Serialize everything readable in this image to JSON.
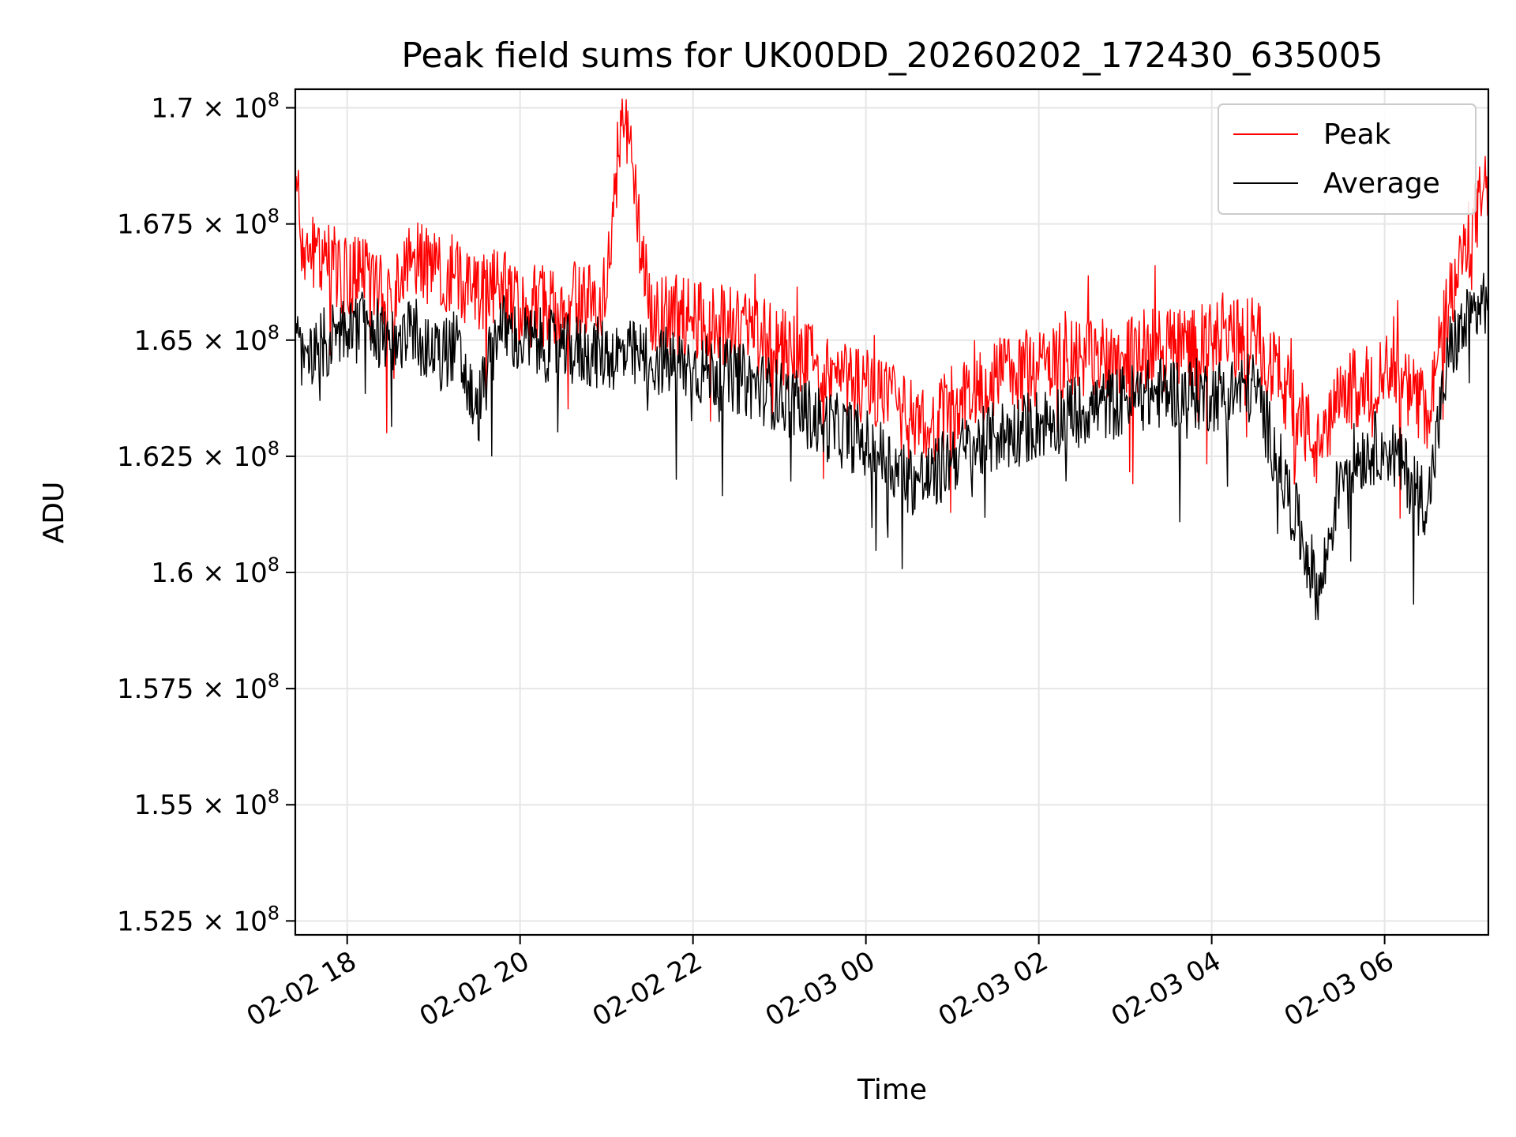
{
  "chart_data": {
    "type": "line",
    "title": "Peak field sums for UK00DD_20260202_172430_635005",
    "xlabel": "Time",
    "ylabel": "ADU",
    "x_range": [
      "2026-02-02 17:24",
      "2026-02-03 07:12"
    ],
    "ylim": [
      152200000,
      170400000
    ],
    "x_ticks": [
      {
        "label": "02-02 18",
        "time": "2026-02-02 18:00"
      },
      {
        "label": "02-02 20",
        "time": "2026-02-02 20:00"
      },
      {
        "label": "02-02 22",
        "time": "2026-02-02 22:00"
      },
      {
        "label": "02-03 00",
        "time": "2026-02-03 00:00"
      },
      {
        "label": "02-03 02",
        "time": "2026-02-03 02:00"
      },
      {
        "label": "02-03 04",
        "time": "2026-02-03 04:00"
      },
      {
        "label": "02-03 06",
        "time": "2026-02-03 06:00"
      }
    ],
    "y_ticks": [
      {
        "mantissa": "1.525",
        "value": 152500000
      },
      {
        "mantissa": "1.55",
        "value": 155000000
      },
      {
        "mantissa": "1.575",
        "value": 157500000
      },
      {
        "mantissa": "1.6",
        "value": 160000000
      },
      {
        "mantissa": "1.625",
        "value": 162500000
      },
      {
        "mantissa": "1.65",
        "value": 165000000
      },
      {
        "mantissa": "1.675",
        "value": 167500000
      },
      {
        "mantissa": "1.7",
        "value": 170000000
      }
    ],
    "y_tick_times": "×",
    "y_tick_base": "10",
    "y_tick_exp": "8",
    "grid": true,
    "legend": "top-right",
    "series": [
      {
        "name": "Peak",
        "color": "#ff0000",
        "points": [
          [
            "2026-02-02 17:24",
            168.3
          ],
          [
            "2026-02-02 17:30",
            167.0
          ],
          [
            "2026-02-02 17:45",
            166.8
          ],
          [
            "2026-02-02 18:00",
            166.3
          ],
          [
            "2026-02-02 18:15",
            166.5
          ],
          [
            "2026-02-02 18:30",
            166.1
          ],
          [
            "2026-02-02 18:45",
            166.7
          ],
          [
            "2026-02-02 19:00",
            166.6
          ],
          [
            "2026-02-02 19:15",
            166.4
          ],
          [
            "2026-02-02 19:30",
            165.9
          ],
          [
            "2026-02-02 19:45",
            166.2
          ],
          [
            "2026-02-02 20:00",
            165.7
          ],
          [
            "2026-02-02 20:30",
            165.8
          ],
          [
            "2026-02-02 21:00",
            165.9
          ],
          [
            "2026-02-02 21:11",
            170.2
          ],
          [
            "2026-02-02 21:30",
            165.6
          ],
          [
            "2026-02-02 22:00",
            165.5
          ],
          [
            "2026-02-02 22:30",
            165.3
          ],
          [
            "2026-02-02 23:00",
            164.9
          ],
          [
            "2026-02-02 23:30",
            164.3
          ],
          [
            "2026-02-03 00:00",
            164.0
          ],
          [
            "2026-02-03 00:30",
            163.3
          ],
          [
            "2026-02-03 00:45",
            163.0
          ],
          [
            "2026-02-03 01:00",
            163.6
          ],
          [
            "2026-02-03 01:30",
            164.2
          ],
          [
            "2026-02-03 02:00",
            164.4
          ],
          [
            "2026-02-03 02:30",
            164.6
          ],
          [
            "2026-02-03 03:00",
            164.7
          ],
          [
            "2026-02-03 03:30",
            164.9
          ],
          [
            "2026-02-03 04:00",
            164.9
          ],
          [
            "2026-02-03 04:30",
            165.1
          ],
          [
            "2026-02-03 05:00",
            163.5
          ],
          [
            "2026-02-03 05:15",
            162.5
          ],
          [
            "2026-02-03 05:30",
            163.8
          ],
          [
            "2026-02-03 06:00",
            164.3
          ],
          [
            "2026-02-03 06:30",
            163.5
          ],
          [
            "2026-02-03 06:45",
            165.8
          ],
          [
            "2026-02-03 07:12",
            168.5
          ]
        ]
      },
      {
        "name": "Average",
        "color": "#000000",
        "points": [
          [
            "2026-02-02 17:24",
            165.0
          ],
          [
            "2026-02-02 17:30",
            164.4
          ],
          [
            "2026-02-02 17:45",
            165.0
          ],
          [
            "2026-02-02 18:00",
            165.2
          ],
          [
            "2026-02-02 18:15",
            165.4
          ],
          [
            "2026-02-02 18:30",
            164.8
          ],
          [
            "2026-02-02 18:45",
            165.3
          ],
          [
            "2026-02-02 19:00",
            164.6
          ],
          [
            "2026-02-02 19:15",
            164.9
          ],
          [
            "2026-02-02 19:30",
            163.4
          ],
          [
            "2026-02-02 19:45",
            165.3
          ],
          [
            "2026-02-02 20:00",
            165.0
          ],
          [
            "2026-02-02 20:30",
            164.8
          ],
          [
            "2026-02-02 21:00",
            164.7
          ],
          [
            "2026-02-02 21:30",
            164.6
          ],
          [
            "2026-02-02 22:00",
            164.4
          ],
          [
            "2026-02-02 22:30",
            164.2
          ],
          [
            "2026-02-02 23:00",
            163.8
          ],
          [
            "2026-02-02 23:30",
            163.2
          ],
          [
            "2026-02-03 00:00",
            162.8
          ],
          [
            "2026-02-03 00:30",
            162.0
          ],
          [
            "2026-02-03 00:45",
            162.0
          ],
          [
            "2026-02-03 01:00",
            162.5
          ],
          [
            "2026-02-03 01:30",
            162.9
          ],
          [
            "2026-02-03 02:00",
            163.2
          ],
          [
            "2026-02-03 02:30",
            163.5
          ],
          [
            "2026-02-03 03:00",
            163.7
          ],
          [
            "2026-02-03 03:30",
            163.9
          ],
          [
            "2026-02-03 04:00",
            163.8
          ],
          [
            "2026-02-03 04:30",
            164.0
          ],
          [
            "2026-02-03 05:00",
            161.0
          ],
          [
            "2026-02-03 05:15",
            159.5
          ],
          [
            "2026-02-03 05:30",
            162.3
          ],
          [
            "2026-02-03 06:00",
            162.8
          ],
          [
            "2026-02-03 06:30",
            161.5
          ],
          [
            "2026-02-03 06:45",
            164.8
          ],
          [
            "2026-02-03 07:12",
            166.0
          ]
        ]
      }
    ],
    "value_unit": "1e6 ADU"
  }
}
